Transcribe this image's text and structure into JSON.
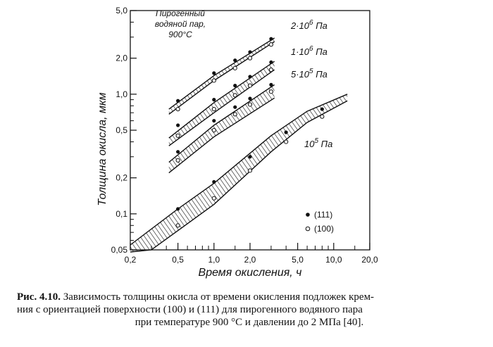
{
  "chart_data": {
    "type": "line",
    "xlabel": "Время окисления, ч",
    "ylabel": "Толщина окисла, мкм",
    "xscale": "log",
    "yscale": "log",
    "xlim": [
      0.2,
      20.0
    ],
    "ylim": [
      0.05,
      5.0
    ],
    "x_tick_labels": [
      "0,2",
      "0,5",
      "1,0",
      "2,0",
      "5,0",
      "10,0",
      "20,0"
    ],
    "x_tick_values": [
      0.2,
      0.5,
      1.0,
      2.0,
      5.0,
      10.0,
      20.0
    ],
    "y_tick_labels": [
      "0,05",
      "0,1",
      "0,2",
      "0,5",
      "1,0",
      "2,0",
      "5,0"
    ],
    "y_tick_values": [
      0.05,
      0.1,
      0.2,
      0.5,
      1.0,
      2.0,
      5.0
    ],
    "annotation": [
      "Пирогенный",
      "водяной пар,",
      "900°C"
    ],
    "series": [
      {
        "pressure_label": [
          "2·10",
          "6",
          " Па"
        ],
        "band_low": [
          [
            0.42,
            0.68
          ],
          [
            1.0,
            1.3
          ],
          [
            3.2,
            2.75
          ]
        ],
        "band_high": [
          [
            0.42,
            0.75
          ],
          [
            1.0,
            1.43
          ],
          [
            3.2,
            2.95
          ]
        ],
        "points_111": [
          [
            0.5,
            0.88
          ],
          [
            1.0,
            1.5
          ],
          [
            1.5,
            1.92
          ],
          [
            2.0,
            2.25
          ],
          [
            3.0,
            2.9
          ]
        ],
        "points_100": [
          [
            0.5,
            0.75
          ],
          [
            1.0,
            1.3
          ],
          [
            1.5,
            1.65
          ],
          [
            2.0,
            2.0
          ],
          [
            3.0,
            2.6
          ]
        ]
      },
      {
        "pressure_label": [
          "1·10",
          "6",
          " Па"
        ],
        "band_low": [
          [
            0.42,
            0.37
          ],
          [
            1.0,
            0.7
          ],
          [
            3.2,
            1.6
          ]
        ],
        "band_high": [
          [
            0.42,
            0.43
          ],
          [
            1.0,
            0.85
          ],
          [
            3.2,
            1.88
          ]
        ],
        "points_111": [
          [
            0.5,
            0.55
          ],
          [
            1.0,
            0.9
          ],
          [
            1.5,
            1.18
          ],
          [
            2.0,
            1.4
          ],
          [
            3.0,
            1.85
          ]
        ],
        "points_100": [
          [
            0.5,
            0.45
          ],
          [
            1.0,
            0.75
          ],
          [
            1.5,
            0.98
          ],
          [
            2.0,
            1.18
          ],
          [
            3.0,
            1.6
          ]
        ]
      },
      {
        "pressure_label": [
          "5·10",
          "5",
          " Па"
        ],
        "band_low": [
          [
            0.42,
            0.22
          ],
          [
            1.0,
            0.44
          ],
          [
            3.2,
            0.93
          ]
        ],
        "band_high": [
          [
            0.42,
            0.27
          ],
          [
            1.0,
            0.55
          ],
          [
            3.2,
            1.2
          ]
        ],
        "points_111": [
          [
            0.5,
            0.33
          ],
          [
            1.0,
            0.6
          ],
          [
            1.5,
            0.78
          ],
          [
            2.0,
            0.92
          ],
          [
            3.0,
            1.2
          ]
        ],
        "points_100": [
          [
            0.5,
            0.28
          ],
          [
            1.0,
            0.5
          ],
          [
            1.5,
            0.68
          ],
          [
            2.0,
            0.82
          ],
          [
            3.0,
            1.05
          ]
        ]
      },
      {
        "pressure_label": [
          "10",
          "5",
          " Па"
        ],
        "band_low": [
          [
            0.2,
            0.048
          ],
          [
            0.3,
            0.05
          ],
          [
            1.0,
            0.12
          ],
          [
            3.0,
            0.33
          ],
          [
            6.0,
            0.58
          ],
          [
            13.0,
            0.88
          ]
        ],
        "band_high": [
          [
            0.2,
            0.055
          ],
          [
            0.5,
            0.11
          ],
          [
            1.0,
            0.18
          ],
          [
            3.0,
            0.45
          ],
          [
            6.0,
            0.72
          ],
          [
            13.0,
            1.0
          ]
        ],
        "points_111": [
          [
            0.5,
            0.11
          ],
          [
            1.0,
            0.185
          ],
          [
            2.0,
            0.3
          ],
          [
            4.0,
            0.48
          ],
          [
            8.0,
            0.75
          ]
        ],
        "points_100": [
          [
            0.5,
            0.08
          ],
          [
            1.0,
            0.135
          ],
          [
            2.0,
            0.23
          ],
          [
            4.0,
            0.4
          ],
          [
            8.0,
            0.65
          ]
        ]
      }
    ],
    "legend": [
      {
        "marker": "•",
        "label": "(111)"
      },
      {
        "marker": "○",
        "label": "(100)"
      }
    ]
  },
  "caption": {
    "bold": "Рис. 4.10.",
    "line1": " Зависимость толщины окисла от времени окисления подложек крем-",
    "line2": "ния с ориентацией поверхности (100) и (111) для пирогенного водяного пара",
    "line3": "при температуре 900 °С и давлении до 2 МПа [40]."
  }
}
